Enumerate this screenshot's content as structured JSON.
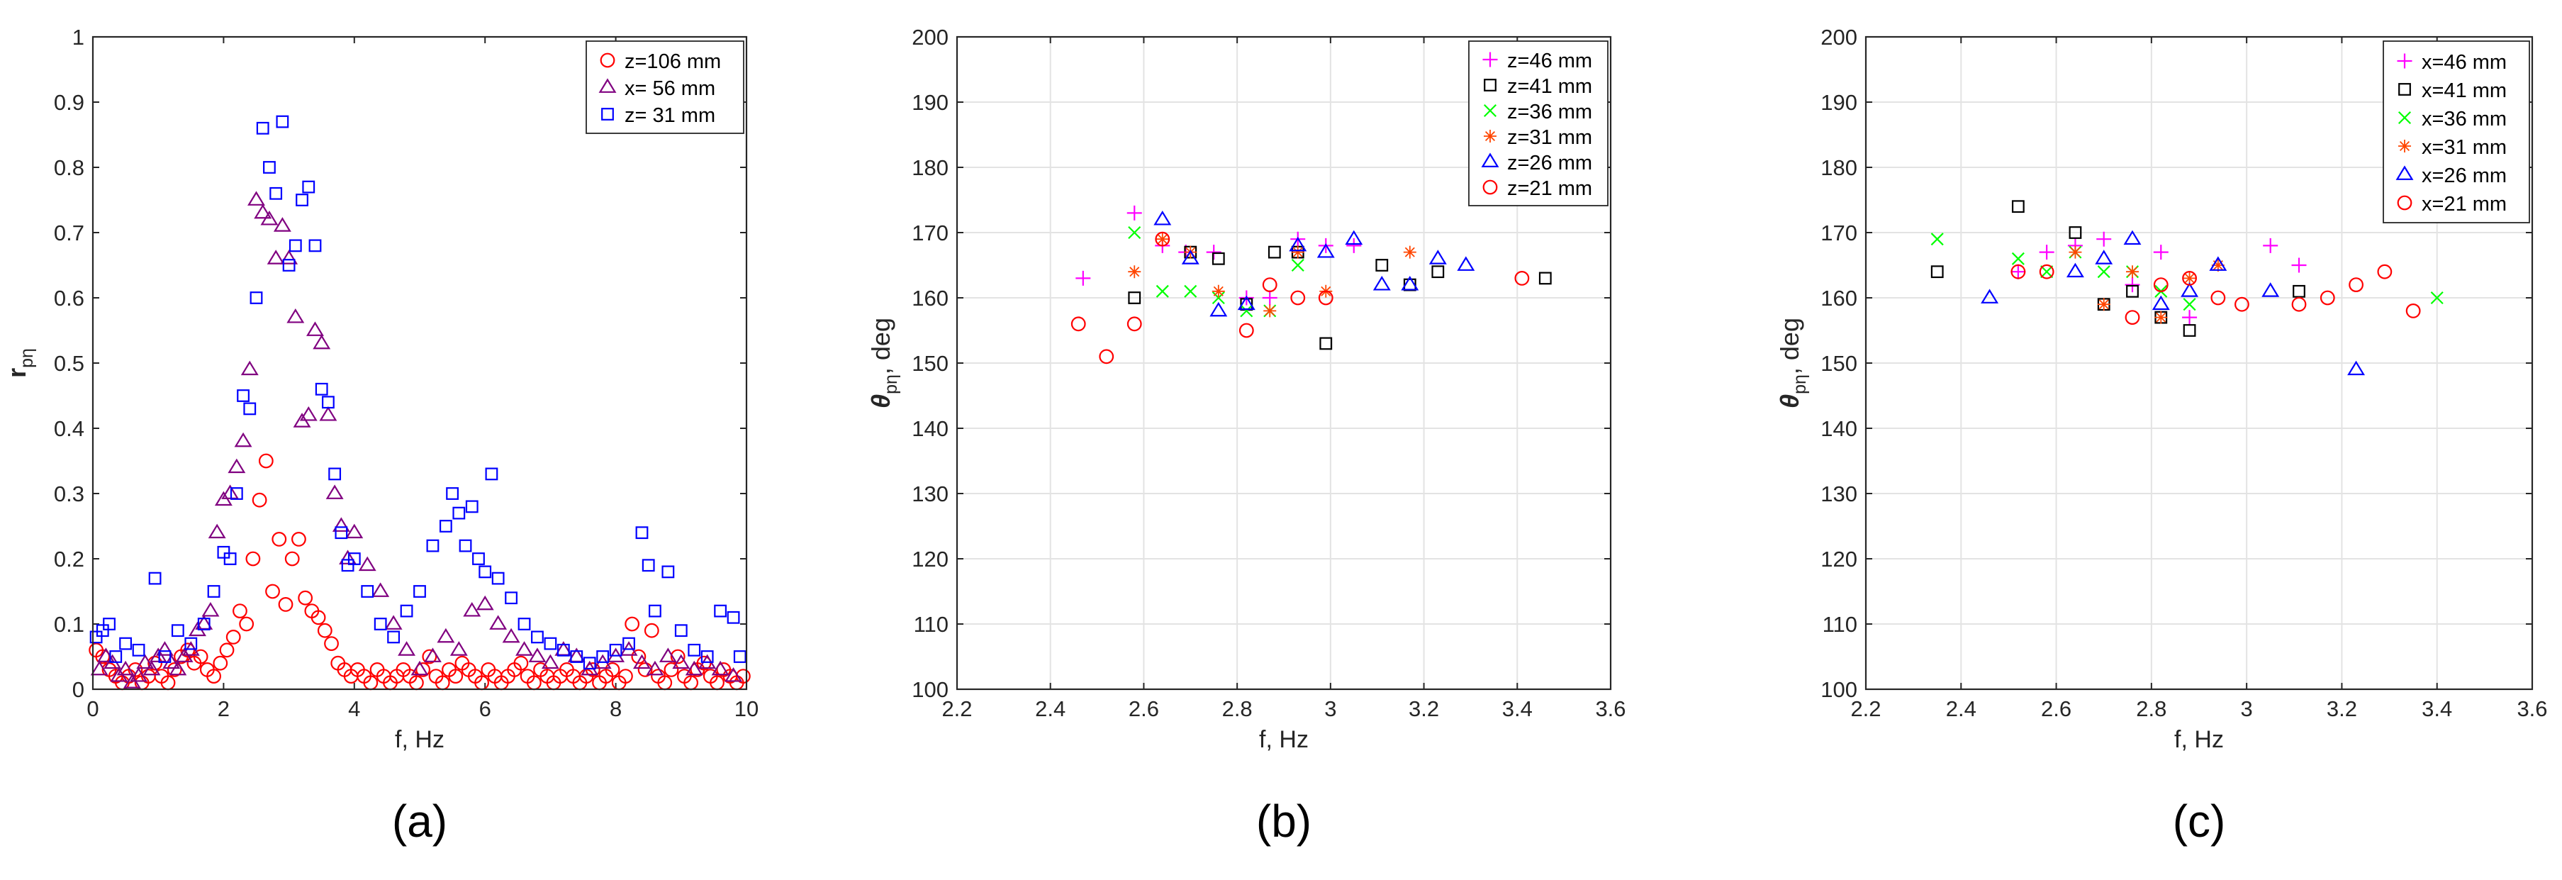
{
  "chart_data": [
    {
      "type": "scatter",
      "panel_label": "(a)",
      "xlabel": "f, Hz",
      "ylabel_main": "r",
      "ylabel_sub": "pη",
      "xlim": [
        0,
        10
      ],
      "ylim": [
        0,
        1
      ],
      "xticks": [
        0,
        2,
        4,
        6,
        8,
        10
      ],
      "yticks": [
        0,
        0.1,
        0.2,
        0.3,
        0.4,
        0.5,
        0.6,
        0.7,
        0.8,
        0.9,
        1
      ],
      "grid": false,
      "legend_position": "top-right",
      "series": [
        {
          "name": "z=106 mm",
          "marker": "circle",
          "color": "#ff0000",
          "x": [
            0.05,
            0.15,
            0.25,
            0.35,
            0.45,
            0.55,
            0.65,
            0.75,
            0.85,
            0.95,
            1.05,
            1.15,
            1.25,
            1.35,
            1.45,
            1.55,
            1.65,
            1.75,
            1.85,
            1.95,
            2.05,
            2.15,
            2.25,
            2.35,
            2.45,
            2.55,
            2.65,
            2.75,
            2.85,
            2.95,
            3.05,
            3.15,
            3.25,
            3.35,
            3.45,
            3.55,
            3.65,
            3.75,
            3.85,
            3.95,
            4.05,
            4.15,
            4.25,
            4.35,
            4.45,
            4.55,
            4.65,
            4.75,
            4.85,
            4.95,
            5.05,
            5.15,
            5.25,
            5.35,
            5.45,
            5.55,
            5.65,
            5.75,
            5.85,
            5.95,
            6.05,
            6.15,
            6.25,
            6.35,
            6.45,
            6.55,
            6.65,
            6.75,
            6.85,
            6.95,
            7.05,
            7.15,
            7.25,
            7.35,
            7.45,
            7.55,
            7.65,
            7.75,
            7.85,
            7.95,
            8.05,
            8.15,
            8.25,
            8.35,
            8.45,
            8.55,
            8.65,
            8.75,
            8.85,
            8.95,
            9.05,
            9.15,
            9.25,
            9.35,
            9.45,
            9.55,
            9.65,
            9.75,
            9.85,
            9.95
          ],
          "y": [
            0.06,
            0.05,
            0.03,
            0.02,
            0.01,
            0.02,
            0.03,
            0.01,
            0.02,
            0.04,
            0.02,
            0.01,
            0.03,
            0.05,
            0.06,
            0.04,
            0.05,
            0.03,
            0.02,
            0.04,
            0.06,
            0.08,
            0.12,
            0.1,
            0.2,
            0.29,
            0.35,
            0.15,
            0.23,
            0.13,
            0.2,
            0.23,
            0.14,
            0.12,
            0.11,
            0.09,
            0.07,
            0.04,
            0.03,
            0.02,
            0.03,
            0.02,
            0.01,
            0.03,
            0.02,
            0.01,
            0.02,
            0.03,
            0.02,
            0.01,
            0.03,
            0.05,
            0.02,
            0.01,
            0.03,
            0.02,
            0.04,
            0.03,
            0.02,
            0.01,
            0.03,
            0.02,
            0.01,
            0.02,
            0.03,
            0.04,
            0.02,
            0.01,
            0.03,
            0.02,
            0.01,
            0.02,
            0.03,
            0.02,
            0.01,
            0.02,
            0.03,
            0.01,
            0.02,
            0.03,
            0.01,
            0.02,
            0.1,
            0.05,
            0.03,
            0.09,
            0.02,
            0.01,
            0.03,
            0.05,
            0.02,
            0.01,
            0.03,
            0.04,
            0.02,
            0.01,
            0.03,
            0.02,
            0.01,
            0.02
          ]
        },
        {
          "name": "x= 56 mm",
          "marker": "triangle",
          "color": "#800080",
          "x": [
            0.1,
            0.2,
            0.3,
            0.4,
            0.5,
            0.6,
            0.7,
            0.8,
            0.9,
            1.0,
            1.1,
            1.2,
            1.3,
            1.4,
            1.5,
            1.6,
            1.7,
            1.8,
            1.9,
            2.0,
            2.1,
            2.2,
            2.3,
            2.4,
            2.5,
            2.6,
            2.7,
            2.8,
            2.9,
            3.0,
            3.1,
            3.2,
            3.3,
            3.4,
            3.5,
            3.6,
            3.7,
            3.8,
            3.9,
            4.0,
            4.2,
            4.4,
            4.6,
            4.8,
            5.0,
            5.2,
            5.4,
            5.6,
            5.8,
            6.0,
            6.2,
            6.4,
            6.6,
            6.8,
            7.0,
            7.2,
            7.4,
            7.6,
            7.8,
            8.0,
            8.2,
            8.4,
            8.6,
            8.8,
            9.0,
            9.2,
            9.4,
            9.6,
            9.8
          ],
          "y": [
            0.03,
            0.05,
            0.04,
            0.02,
            0.03,
            0.01,
            0.02,
            0.04,
            0.03,
            0.05,
            0.06,
            0.04,
            0.03,
            0.05,
            0.06,
            0.09,
            0.1,
            0.12,
            0.24,
            0.29,
            0.3,
            0.34,
            0.38,
            0.49,
            0.75,
            0.73,
            0.72,
            0.66,
            0.71,
            0.66,
            0.57,
            0.41,
            0.42,
            0.55,
            0.53,
            0.42,
            0.3,
            0.25,
            0.2,
            0.24,
            0.19,
            0.15,
            0.1,
            0.06,
            0.03,
            0.05,
            0.08,
            0.06,
            0.12,
            0.13,
            0.1,
            0.08,
            0.06,
            0.05,
            0.04,
            0.06,
            0.05,
            0.03,
            0.04,
            0.05,
            0.06,
            0.04,
            0.03,
            0.05,
            0.04,
            0.03,
            0.04,
            0.03,
            0.02
          ]
        },
        {
          "name": "z= 31 mm",
          "marker": "square",
          "color": "#0000ff",
          "x": [
            0.05,
            0.15,
            0.25,
            0.35,
            0.5,
            0.7,
            0.95,
            1.1,
            1.3,
            1.5,
            1.7,
            1.85,
            2.0,
            2.1,
            2.2,
            2.3,
            2.4,
            2.5,
            2.6,
            2.7,
            2.8,
            2.9,
            3.0,
            3.1,
            3.2,
            3.3,
            3.4,
            3.5,
            3.6,
            3.7,
            3.8,
            3.9,
            4.0,
            4.2,
            4.4,
            4.6,
            4.8,
            5.0,
            5.2,
            5.4,
            5.5,
            5.6,
            5.7,
            5.8,
            5.9,
            6.0,
            6.1,
            6.2,
            6.4,
            6.6,
            6.8,
            7.0,
            7.2,
            7.4,
            7.6,
            7.8,
            8.0,
            8.2,
            8.4,
            8.5,
            8.6,
            8.8,
            9.0,
            9.2,
            9.4,
            9.6,
            9.8,
            9.9
          ],
          "y": [
            0.08,
            0.09,
            0.1,
            0.05,
            0.07,
            0.06,
            0.17,
            0.05,
            0.09,
            0.07,
            0.1,
            0.15,
            0.21,
            0.2,
            0.3,
            0.45,
            0.43,
            0.6,
            0.86,
            0.8,
            0.76,
            0.87,
            0.65,
            0.68,
            0.75,
            0.77,
            0.68,
            0.46,
            0.44,
            0.33,
            0.24,
            0.19,
            0.2,
            0.15,
            0.1,
            0.08,
            0.12,
            0.15,
            0.22,
            0.25,
            0.3,
            0.27,
            0.22,
            0.28,
            0.2,
            0.18,
            0.33,
            0.17,
            0.14,
            0.1,
            0.08,
            0.07,
            0.06,
            0.05,
            0.04,
            0.05,
            0.06,
            0.07,
            0.24,
            0.19,
            0.12,
            0.18,
            0.09,
            0.06,
            0.05,
            0.12,
            0.11,
            0.05
          ]
        }
      ]
    },
    {
      "type": "scatter",
      "panel_label": "(b)",
      "xlabel": "f, Hz",
      "ylabel_main": "θ",
      "ylabel_sub": "pη",
      "ylabel_suffix": ", deg",
      "xlim": [
        2.2,
        3.6
      ],
      "ylim": [
        100,
        200
      ],
      "xticks": [
        2.2,
        2.4,
        2.6,
        2.8,
        3,
        3.2,
        3.4,
        3.6
      ],
      "yticks": [
        100,
        110,
        120,
        130,
        140,
        150,
        160,
        170,
        180,
        190,
        200
      ],
      "grid": true,
      "legend_position": "top-right",
      "series": [
        {
          "name": "z=46 mm",
          "marker": "plus",
          "color": "#ff00ff",
          "x": [
            2.47,
            2.58,
            2.64,
            2.69,
            2.75,
            2.82,
            2.87,
            2.93,
            2.99,
            3.05
          ],
          "y": [
            163,
            173,
            168,
            167,
            167,
            160,
            160,
            169,
            168,
            168
          ]
        },
        {
          "name": "z=41 mm",
          "marker": "square",
          "color": "#000000",
          "x": [
            2.58,
            2.7,
            2.76,
            2.82,
            2.88,
            2.93,
            2.99,
            3.11,
            3.17,
            3.23,
            3.46
          ],
          "y": [
            160,
            167,
            166,
            159,
            167,
            167,
            153,
            165,
            162,
            164,
            163
          ]
        },
        {
          "name": "z=36 mm",
          "marker": "x",
          "color": "#00ff00",
          "x": [
            2.58,
            2.64,
            2.7,
            2.76,
            2.82,
            2.87,
            2.93
          ],
          "y": [
            170,
            161,
            161,
            160,
            158,
            158,
            165
          ]
        },
        {
          "name": "z=31 mm",
          "marker": "star",
          "color": "#ff4500",
          "x": [
            2.58,
            2.64,
            2.7,
            2.76,
            2.87,
            2.93,
            2.99,
            3.17
          ],
          "y": [
            164,
            169,
            167,
            161,
            158,
            167,
            161,
            167
          ]
        },
        {
          "name": "z=26 mm",
          "marker": "triangle",
          "color": "#0000ff",
          "x": [
            2.64,
            2.7,
            2.76,
            2.82,
            2.93,
            2.99,
            3.05,
            3.11,
            3.17,
            3.23,
            3.29
          ],
          "y": [
            172,
            166,
            158,
            159,
            168,
            167,
            169,
            162,
            162,
            166,
            165
          ]
        },
        {
          "name": "z=21 mm",
          "marker": "circle",
          "color": "#ff0000",
          "x": [
            2.46,
            2.52,
            2.58,
            2.64,
            2.82,
            2.87,
            2.93,
            2.99,
            3.41
          ],
          "y": [
            156,
            151,
            156,
            169,
            155,
            162,
            160,
            160,
            163
          ]
        }
      ]
    },
    {
      "type": "scatter",
      "panel_label": "(c)",
      "xlabel": "f, Hz",
      "ylabel_main": "θ",
      "ylabel_sub": "pη",
      "ylabel_suffix": ", deg",
      "xlim": [
        2.2,
        3.6
      ],
      "ylim": [
        100,
        200
      ],
      "xticks": [
        2.2,
        2.4,
        2.6,
        2.8,
        3,
        3.2,
        3.4,
        3.6
      ],
      "yticks": [
        100,
        110,
        120,
        130,
        140,
        150,
        160,
        170,
        180,
        190,
        200
      ],
      "grid": true,
      "legend_position": "top-right",
      "series": [
        {
          "name": "x=46 mm",
          "marker": "plus",
          "color": "#ff00ff",
          "x": [
            2.52,
            2.58,
            2.64,
            2.7,
            2.76,
            2.82,
            2.88,
            3.05,
            3.11
          ],
          "y": [
            164,
            167,
            168,
            169,
            162,
            167,
            157,
            168,
            165
          ]
        },
        {
          "name": "x=41 mm",
          "marker": "square",
          "color": "#000000",
          "x": [
            2.35,
            2.52,
            2.64,
            2.7,
            2.76,
            2.82,
            2.88,
            3.11
          ],
          "y": [
            164,
            174,
            170,
            159,
            161,
            157,
            155,
            161
          ]
        },
        {
          "name": "x=36 mm",
          "marker": "x",
          "color": "#00ff00",
          "x": [
            2.35,
            2.52,
            2.58,
            2.64,
            2.7,
            2.76,
            2.82,
            2.88,
            3.4
          ],
          "y": [
            169,
            166,
            164,
            167,
            164,
            164,
            161,
            159,
            160
          ]
        },
        {
          "name": "x=31 mm",
          "marker": "star",
          "color": "#ff4500",
          "x": [
            2.64,
            2.7,
            2.76,
            2.82,
            2.88,
            2.94
          ],
          "y": [
            167,
            159,
            164,
            157,
            163,
            165
          ]
        },
        {
          "name": "x=26 mm",
          "marker": "triangle",
          "color": "#0000ff",
          "x": [
            2.46,
            2.64,
            2.7,
            2.76,
            2.82,
            2.88,
            2.94,
            3.05,
            3.23
          ],
          "y": [
            160,
            164,
            166,
            169,
            159,
            161,
            165,
            161,
            149
          ]
        },
        {
          "name": "x=21 mm",
          "marker": "circle",
          "color": "#ff0000",
          "x": [
            2.52,
            2.58,
            2.76,
            2.82,
            2.88,
            2.94,
            2.99,
            3.11,
            3.17,
            3.23,
            3.29,
            3.35
          ],
          "y": [
            164,
            164,
            157,
            162,
            163,
            160,
            159,
            159,
            160,
            162,
            164,
            158
          ]
        }
      ]
    }
  ]
}
